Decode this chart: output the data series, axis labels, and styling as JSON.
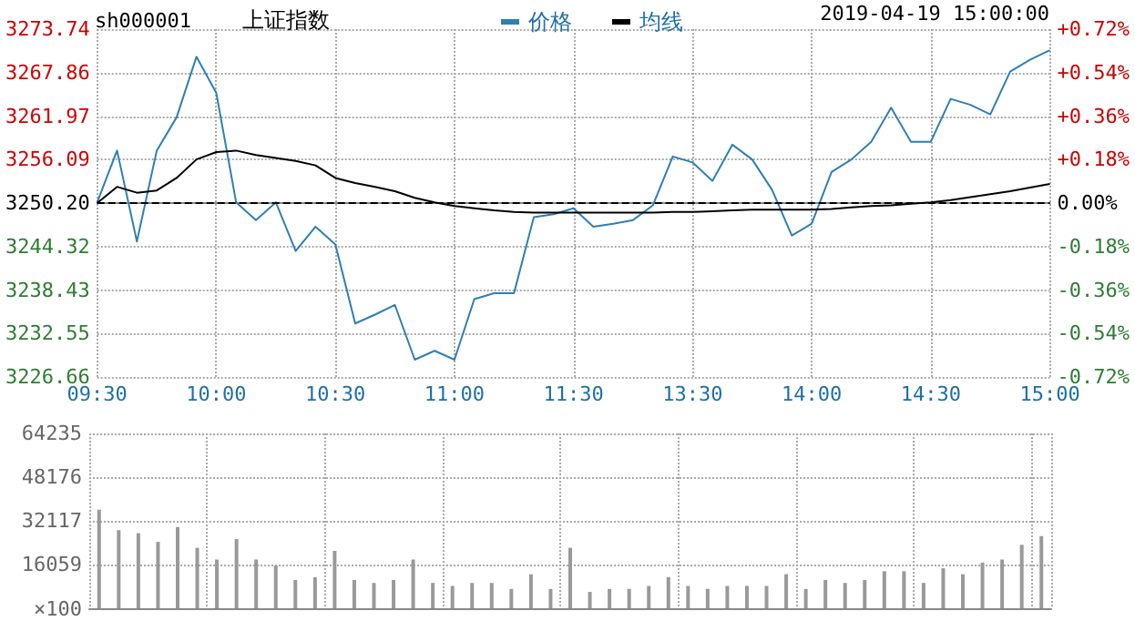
{
  "chart_data": [
    {
      "type": "line",
      "title": "上证指数",
      "subtitle": "sh000001",
      "annotations": [
        "2019-04-19 15:00:00"
      ],
      "categories": [
        "09:30",
        null,
        null,
        null,
        null,
        null,
        "10:00",
        null,
        null,
        null,
        null,
        null,
        "10:30",
        null,
        null,
        null,
        null,
        null,
        "11:00",
        null,
        null,
        null,
        null,
        null,
        "11:30",
        null,
        null,
        null,
        null,
        null,
        "13:30",
        null,
        null,
        null,
        null,
        null,
        "14:00",
        null,
        null,
        null,
        null,
        null,
        "14:30",
        null,
        null,
        null,
        null,
        null,
        "15:00"
      ],
      "series": [
        {
          "name": "价格",
          "color": "#2f7fb5",
          "values": [
            3250.3,
            3257.3,
            3245.0,
            3257.3,
            3261.8,
            3270.0,
            3265.1,
            3250.3,
            3247.9,
            3250.3,
            3243.7,
            3247.0,
            3244.6,
            3233.9,
            3235.1,
            3236.4,
            3229.0,
            3230.2,
            3229.0,
            3237.2,
            3238.0,
            3238.0,
            3248.3,
            3248.7,
            3249.5,
            3247.0,
            3247.4,
            3247.9,
            3249.9,
            3256.5,
            3255.7,
            3253.2,
            3258.1,
            3256.1,
            3252.0,
            3245.8,
            3247.4,
            3254.4,
            3256.1,
            3258.5,
            3263.1,
            3258.5,
            3258.5,
            3264.3,
            3263.5,
            3262.2,
            3268.0,
            3269.6,
            3270.9
          ]
        },
        {
          "name": "均线",
          "color": "#000000",
          "values": [
            3250.2,
            3252.4,
            3251.6,
            3251.9,
            3253.6,
            3256.1,
            3257.1,
            3257.3,
            3256.7,
            3256.3,
            3255.9,
            3255.3,
            3253.6,
            3252.9,
            3252.4,
            3251.8,
            3250.9,
            3250.3,
            3249.8,
            3249.5,
            3249.2,
            3249.0,
            3248.9,
            3248.9,
            3248.9,
            3248.9,
            3248.9,
            3248.9,
            3248.9,
            3249.0,
            3249.0,
            3249.1,
            3249.2,
            3249.3,
            3249.3,
            3249.3,
            3249.3,
            3249.4,
            3249.6,
            3249.8,
            3249.9,
            3250.1,
            3250.3,
            3250.6,
            3251.0,
            3251.4,
            3251.8,
            3252.3,
            3252.8
          ]
        }
      ],
      "ylim": [
        3226.66,
        3273.74
      ],
      "yticks": [
        3226.66,
        3232.55,
        3238.43,
        3244.32,
        {
          "value": 3250.2,
          "label": "3250.20"
        },
        3256.09,
        3261.97,
        3267.86,
        3273.74
      ],
      "y2lim": [
        -0.72,
        0.72
      ],
      "y2ticks": [
        {
          "value": -0.72,
          "label": "-0.72%"
        },
        {
          "value": -0.54,
          "label": "-0.54%"
        },
        {
          "value": -0.36,
          "label": "-0.36%"
        },
        {
          "value": -0.18,
          "label": "-0.18%"
        },
        {
          "value": 0,
          "label": "0.00%"
        },
        {
          "value": 0.18,
          "label": "+0.18%"
        },
        {
          "value": 0.36,
          "label": "+0.36%"
        },
        {
          "value": 0.54,
          "label": "+0.54%"
        },
        {
          "value": 0.72,
          "label": "+0.72%"
        }
      ],
      "ref_lines": [
        {
          "axis": "y",
          "value": 3250.2,
          "color": "#000000",
          "line_style": "dashed"
        }
      ],
      "grid": true,
      "legend": "top",
      "marker": "none"
    },
    {
      "type": "bar",
      "categories": [
        null,
        null,
        null,
        null,
        null,
        null,
        null,
        null,
        null,
        null,
        null,
        null,
        null,
        null,
        null,
        null,
        null,
        null,
        null,
        null,
        null,
        null,
        null,
        null,
        null,
        null,
        null,
        null,
        null,
        null,
        null,
        null,
        null,
        null,
        null,
        null,
        null,
        null,
        null,
        null,
        null,
        null,
        null,
        null,
        null,
        null,
        null,
        null,
        null
      ],
      "series": [
        {
          "color": "#999999",
          "values": [
            36200,
            28700,
            27600,
            24400,
            29800,
            22200,
            17900,
            25400,
            17900,
            15700,
            10400,
            11400,
            21100,
            10400,
            9300,
            10400,
            17900,
            9300,
            8200,
            9300,
            9300,
            7100,
            12500,
            7100,
            22200,
            6000,
            7100,
            7100,
            8200,
            11400,
            8200,
            7100,
            8200,
            8200,
            8200,
            12500,
            7100,
            10400,
            9300,
            10400,
            13600,
            13600,
            9300,
            14700,
            12500,
            16800,
            17900,
            23300,
            26500
          ]
        }
      ],
      "ylim": [
        0,
        64235
      ],
      "yticks": [
        {
          "value": 0,
          "label": null
        },
        16059,
        32117,
        48176,
        64235
      ],
      "ylabel": "×100",
      "grid": true,
      "tick_labels": "y"
    }
  ]
}
